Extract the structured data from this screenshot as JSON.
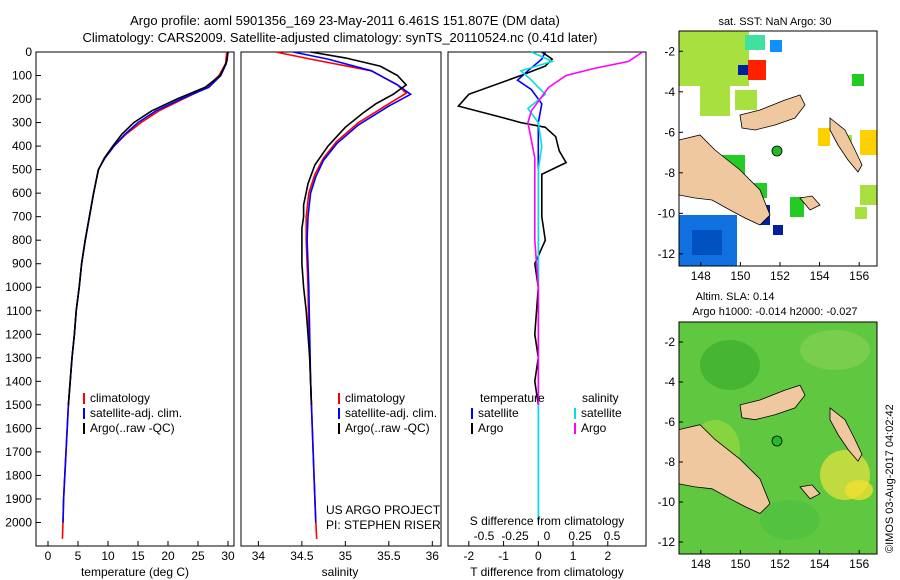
{
  "header": {
    "line1": "Argo profile: aoml 5901356_169 23-May-2011 6.461S 151.807E (DM data)",
    "line2": "Climatology: CARS2009. Satellite-adjusted climatology: synTS_20110524.nc (0.41d later)"
  },
  "colors": {
    "climatology": "#ff0000",
    "satellite": "#0000ff",
    "argo": "#000000",
    "sal_satellite": "#00e0e0",
    "sal_argo": "#ff00ff",
    "land": "#f0c8a0"
  },
  "chart_data": [
    {
      "type": "line",
      "id": "temperature",
      "xlabel": "temperature (deg C)",
      "ylabel": "",
      "xlim": [
        -2,
        31
      ],
      "ylim": [
        2100,
        0
      ],
      "xticks": [
        0,
        5,
        10,
        15,
        20,
        25,
        30
      ],
      "yticks": [
        0,
        100,
        200,
        300,
        400,
        500,
        600,
        700,
        800,
        900,
        1000,
        1100,
        1200,
        1300,
        1400,
        1500,
        1600,
        1700,
        1800,
        1900,
        2000
      ],
      "legend": [
        "climatology",
        "satellite-adj. clim.",
        "Argo(..raw -QC)"
      ],
      "series": [
        {
          "name": "climatology",
          "color": "#ff0000",
          "points": [
            [
              29.8,
              0
            ],
            [
              29.6,
              50
            ],
            [
              28.5,
              100
            ],
            [
              26.5,
              150
            ],
            [
              22.5,
              200
            ],
            [
              18.5,
              250
            ],
            [
              15.5,
              300
            ],
            [
              13,
              350
            ],
            [
              11,
              400
            ],
            [
              9.5,
              450
            ],
            [
              8.4,
              500
            ],
            [
              7.6,
              600
            ],
            [
              6.9,
              700
            ],
            [
              6.2,
              800
            ],
            [
              5.6,
              900
            ],
            [
              5.2,
              1000
            ],
            [
              4.7,
              1100
            ],
            [
              4.4,
              1200
            ],
            [
              4.0,
              1300
            ],
            [
              3.7,
              1400
            ],
            [
              3.4,
              1500
            ],
            [
              3.2,
              1600
            ],
            [
              3.0,
              1700
            ],
            [
              2.8,
              1800
            ],
            [
              2.6,
              1900
            ],
            [
              2.5,
              2000
            ],
            [
              2.4,
              2070
            ]
          ]
        },
        {
          "name": "satellite-adj. clim.",
          "color": "#0000ff",
          "points": [
            [
              30.0,
              0
            ],
            [
              29.7,
              50
            ],
            [
              28.8,
              100
            ],
            [
              26.8,
              150
            ],
            [
              22.2,
              200
            ],
            [
              18.0,
              250
            ],
            [
              15.0,
              300
            ],
            [
              12.8,
              350
            ],
            [
              11,
              400
            ],
            [
              9.5,
              450
            ],
            [
              8.4,
              500
            ],
            [
              7.6,
              600
            ],
            [
              6.9,
              700
            ],
            [
              6.2,
              800
            ],
            [
              5.6,
              900
            ],
            [
              5.2,
              1000
            ],
            [
              4.7,
              1100
            ],
            [
              4.4,
              1200
            ],
            [
              4.0,
              1300
            ],
            [
              3.7,
              1400
            ],
            [
              3.4,
              1500
            ],
            [
              3.2,
              1600
            ],
            [
              3.0,
              1700
            ],
            [
              2.8,
              1800
            ],
            [
              2.6,
              1900
            ],
            [
              2.5,
              2000
            ]
          ]
        },
        {
          "name": "Argo(..raw -QC)",
          "color": "#000000",
          "points": [
            [
              30.0,
              0
            ],
            [
              29.8,
              40
            ],
            [
              28.7,
              100
            ],
            [
              26.2,
              150
            ],
            [
              21.5,
              200
            ],
            [
              17.3,
              250
            ],
            [
              14.3,
              300
            ],
            [
              12.3,
              350
            ],
            [
              10.8,
              400
            ],
            [
              9.4,
              450
            ],
            [
              8.4,
              500
            ],
            [
              7.6,
              600
            ],
            [
              6.9,
              700
            ],
            [
              6.2,
              800
            ],
            [
              5.6,
              900
            ],
            [
              5.2,
              1000
            ],
            [
              4.7,
              1100
            ],
            [
              4.4,
              1200
            ],
            [
              4.0,
              1300
            ],
            [
              3.7,
              1400
            ],
            [
              3.4,
              1500
            ]
          ]
        }
      ]
    },
    {
      "type": "line",
      "id": "salinity",
      "xlabel": "salinity",
      "ylabel": "",
      "xlim": [
        33.8,
        36.1
      ],
      "ylim": [
        2100,
        0
      ],
      "xticks": [
        34,
        34.5,
        35,
        35.5,
        36
      ],
      "legend": [
        "climatology",
        "satellite-adj. clim.",
        "Argo(..raw -QC)"
      ],
      "note": [
        "US ARGO PROJECT",
        "PI: STEPHEN RISER"
      ],
      "series": [
        {
          "name": "climatology",
          "color": "#ff0000",
          "points": [
            [
              34.2,
              0
            ],
            [
              34.6,
              30
            ],
            [
              35.3,
              80
            ],
            [
              35.6,
              140
            ],
            [
              35.7,
              175
            ],
            [
              35.5,
              220
            ],
            [
              35.15,
              300
            ],
            [
              34.9,
              380
            ],
            [
              34.75,
              450
            ],
            [
              34.65,
              520
            ],
            [
              34.58,
              600
            ],
            [
              34.55,
              700
            ],
            [
              34.55,
              800
            ],
            [
              34.56,
              900
            ],
            [
              34.57,
              1000
            ],
            [
              34.58,
              1200
            ],
            [
              34.6,
              1400
            ],
            [
              34.62,
              1600
            ],
            [
              34.64,
              1800
            ],
            [
              34.66,
              2000
            ],
            [
              34.67,
              2070
            ]
          ]
        },
        {
          "name": "satellite-adj. clim.",
          "color": "#0000ff",
          "points": [
            [
              34.4,
              0
            ],
            [
              34.8,
              30
            ],
            [
              35.3,
              80
            ],
            [
              35.6,
              140
            ],
            [
              35.75,
              180
            ],
            [
              35.5,
              230
            ],
            [
              35.15,
              310
            ],
            [
              34.9,
              390
            ],
            [
              34.75,
              460
            ],
            [
              34.66,
              530
            ],
            [
              34.6,
              600
            ],
            [
              34.57,
              700
            ],
            [
              34.56,
              800
            ],
            [
              34.57,
              900
            ],
            [
              34.58,
              1000
            ],
            [
              34.59,
              1200
            ],
            [
              34.6,
              1400
            ],
            [
              34.62,
              1600
            ],
            [
              34.64,
              1800
            ],
            [
              34.66,
              2000
            ]
          ]
        },
        {
          "name": "Argo(..raw -QC)",
          "color": "#000000",
          "points": [
            [
              34.6,
              0
            ],
            [
              35.0,
              25
            ],
            [
              35.4,
              60
            ],
            [
              35.6,
              100
            ],
            [
              35.7,
              140
            ],
            [
              35.55,
              180
            ],
            [
              35.35,
              220
            ],
            [
              35.2,
              260
            ],
            [
              35.0,
              320
            ],
            [
              34.8,
              400
            ],
            [
              34.65,
              480
            ],
            [
              34.57,
              560
            ],
            [
              34.52,
              650
            ],
            [
              34.52,
              700
            ],
            [
              34.5,
              750
            ],
            [
              34.5,
              800
            ],
            [
              34.5,
              900
            ],
            [
              34.52,
              1000
            ],
            [
              34.55,
              1100
            ],
            [
              34.57,
              1200
            ],
            [
              34.59,
              1300
            ],
            [
              34.6,
              1400
            ],
            [
              34.61,
              1500
            ]
          ]
        }
      ]
    },
    {
      "type": "line",
      "id": "difference",
      "xlabel": "T difference from climatology",
      "xlabel2": "S difference from climatology",
      "xlim": [
        -2.6,
        3.1
      ],
      "ylim": [
        2100,
        0
      ],
      "xticks": [
        -2,
        -1,
        0,
        1,
        2
      ],
      "xticks_top": [
        "-0.5",
        "-0.25",
        "0",
        "0.25",
        "0.5"
      ],
      "legend_t": [
        "temperature",
        "satellite",
        "Argo"
      ],
      "legend_s": [
        "salinity",
        "satellite",
        "Argo"
      ],
      "series": [
        {
          "name": "T satellite",
          "color": "#0000ff",
          "points": [
            [
              0.2,
              0
            ],
            [
              0.1,
              30
            ],
            [
              -0.3,
              80
            ],
            [
              -0.6,
              120
            ],
            [
              -0.2,
              160
            ],
            [
              0.1,
              220
            ],
            [
              0,
              300
            ],
            [
              0,
              400
            ],
            [
              0,
              600
            ],
            [
              0,
              1000
            ],
            [
              0,
              1500
            ],
            [
              0,
              2000
            ]
          ]
        },
        {
          "name": "T Argo",
          "color": "#000000",
          "points": [
            [
              0.1,
              0
            ],
            [
              0.4,
              30
            ],
            [
              0.2,
              60
            ],
            [
              -0.5,
              100
            ],
            [
              -2.0,
              180
            ],
            [
              -2.3,
              230
            ],
            [
              -1.0,
              280
            ],
            [
              -0.5,
              300
            ],
            [
              0.2,
              320
            ],
            [
              0.5,
              360
            ],
            [
              0.6,
              420
            ],
            [
              0.8,
              470
            ],
            [
              0.1,
              520
            ],
            [
              0.1,
              620
            ],
            [
              0.1,
              700
            ],
            [
              0.2,
              800
            ],
            [
              -0.1,
              900
            ],
            [
              0,
              1000
            ],
            [
              -0.1,
              1200
            ],
            [
              0,
              1300
            ],
            [
              -0.1,
              1400
            ],
            [
              0,
              1500
            ]
          ]
        },
        {
          "name": "S satellite",
          "color": "#00e0e0",
          "points": [
            [
              -0.2,
              0
            ],
            [
              0.4,
              40
            ],
            [
              -0.5,
              80
            ],
            [
              -0.2,
              120
            ],
            [
              0.2,
              180
            ],
            [
              -0.3,
              240
            ],
            [
              0,
              300
            ],
            [
              0.1,
              400
            ],
            [
              0,
              500
            ],
            [
              0,
              700
            ],
            [
              0,
              1000
            ],
            [
              0,
              1500
            ],
            [
              0,
              2000
            ]
          ]
        },
        {
          "name": "S Argo",
          "color": "#ff00ff",
          "points": [
            [
              3.0,
              0
            ],
            [
              2.6,
              40
            ],
            [
              1.6,
              70
            ],
            [
              0.8,
              100
            ],
            [
              0.3,
              150
            ],
            [
              -0.2,
              250
            ],
            [
              -0.3,
              300
            ],
            [
              -0.1,
              450
            ],
            [
              -0.1,
              600
            ],
            [
              -0.1,
              800
            ],
            [
              0,
              1000
            ],
            [
              0,
              1200
            ],
            [
              0,
              1500
            ]
          ]
        }
      ]
    },
    {
      "type": "heatmap",
      "id": "sst-map",
      "title": "sat. SST: NaN Argo: 30",
      "xticks": [
        148,
        150,
        152,
        154,
        156
      ],
      "yticks": [
        -2,
        -4,
        -6,
        -8,
        -10,
        -12
      ]
    },
    {
      "type": "heatmap",
      "id": "sla-map",
      "title": "Altim. SLA: 0.14",
      "subtitle": "Argo h1000: -0.014 h2000: -0.027",
      "xticks": [
        148,
        150,
        152,
        154,
        156
      ],
      "yticks": [
        -2,
        -4,
        -6,
        -8,
        -10,
        -12
      ]
    }
  ],
  "credit": "©IMOS 03-Aug-2017 04:02:42"
}
